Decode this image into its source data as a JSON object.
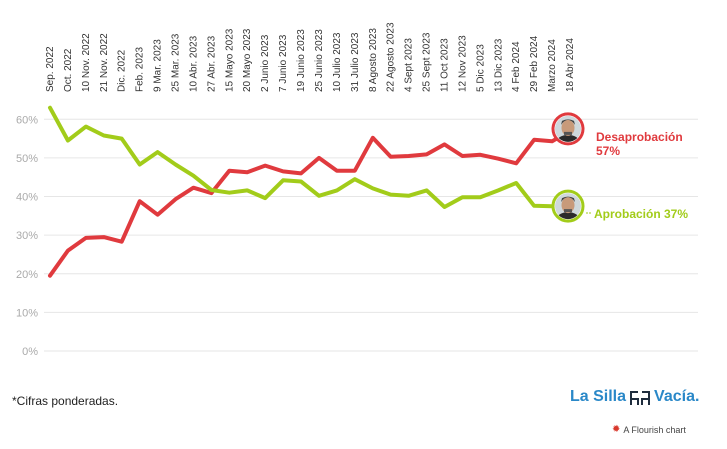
{
  "chart_data": {
    "type": "line",
    "title": "",
    "xlabel": "",
    "ylabel": "",
    "ylim": [
      0,
      65
    ],
    "yticks": [
      0,
      10,
      20,
      30,
      40,
      50,
      60
    ],
    "ytick_labels": [
      "0%",
      "10%",
      "20%",
      "30%",
      "40%",
      "50%",
      "60%"
    ],
    "grid": true,
    "legend": "end-labels",
    "categories": [
      "Sep. 2022",
      "Oct. 2022",
      "10 Nov. 2022",
      "21 Nov. 2022",
      "Dic. 2022",
      "Feb. 2023",
      "9 Mar. 2023",
      "25 Mar. 2023",
      "10 Abr. 2023",
      "27 Abr. 2023",
      "15 Mayo 2023",
      "20 Mayo 2023",
      "2 Junio 2023",
      "7 Junio 2023",
      "19 Junio 2023",
      "25 Junio 2023",
      "10 Julio 2023",
      "31 Julio 2023",
      "8 Agosto 2023",
      "22 Agosto 2023",
      "4 Sept 2023",
      "25 Sept 2023",
      "11 Oct 2023",
      "12 Nov 2023",
      "5 Dic 2023",
      "13 Dic 2023",
      "4 Feb 2024",
      "29 Feb 2024",
      "Marzo 2024",
      "18 Abr 2024"
    ],
    "series": [
      {
        "name": "Desaprobación",
        "end_label": "57%",
        "color": "#e03a3e",
        "values": [
          19.5,
          26,
          29.3,
          29.5,
          28.3,
          38.8,
          35.3,
          39.3,
          42.3,
          40.9,
          46.7,
          46.3,
          48,
          46.5,
          46,
          50,
          46.7,
          46.7,
          55.2,
          50.3,
          50.5,
          50.9,
          53.5,
          50.5,
          50.8,
          49.8,
          48.6,
          54.7,
          54.3,
          57
        ]
      },
      {
        "name": "Aprobación",
        "end_label": "37%",
        "color": "#a2cc1a",
        "values": [
          63,
          54.5,
          58.1,
          55.8,
          55,
          48.3,
          51.5,
          48.3,
          45.4,
          41.7,
          41,
          41.6,
          39.6,
          44.2,
          43.9,
          40.2,
          41.6,
          44.5,
          42.1,
          40.5,
          40.2,
          41.6,
          37.3,
          39.8,
          39.8,
          41.6,
          43.5,
          37.6,
          37.5,
          37
        ]
      }
    ]
  },
  "footnote": "*Cifras ponderadas.",
  "brand": {
    "left": "La Silla",
    "right": "Vacía.",
    "color": "#2a88c8"
  },
  "credit": "A Flourish chart"
}
